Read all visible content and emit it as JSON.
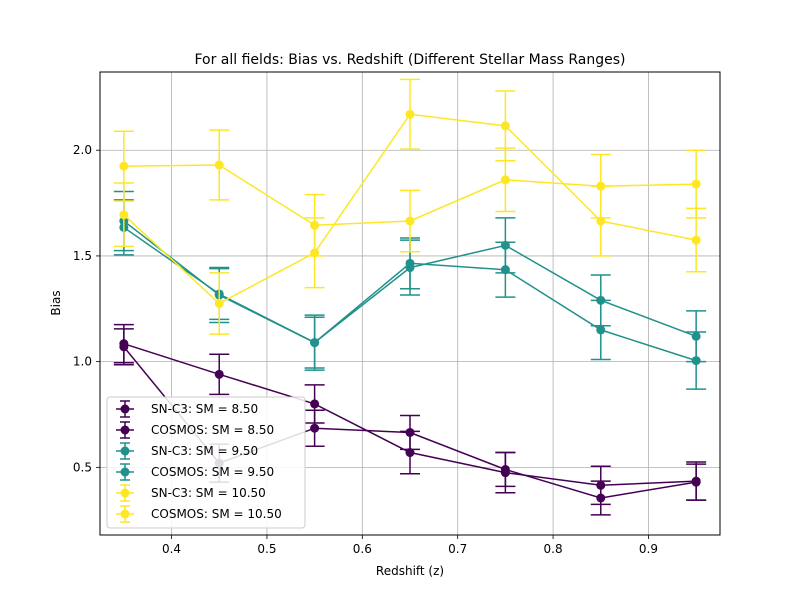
{
  "chart_data": {
    "type": "line",
    "title": "For all fields: Bias vs. Redshift (Different Stellar Mass Ranges)",
    "xlabel": "Redshift (z)",
    "ylabel": "Bias",
    "xlim": [
      0.325,
      0.975
    ],
    "ylim": [
      0.18,
      2.37
    ],
    "xticks": [
      "0.4",
      "0.5",
      "0.6",
      "0.7",
      "0.8",
      "0.9"
    ],
    "yticks": [
      "0.5",
      "1.0",
      "1.5",
      "2.0"
    ],
    "grid": true,
    "legend_position": "lower-left",
    "x": [
      0.35,
      0.45,
      0.55,
      0.65,
      0.75,
      0.85,
      0.95
    ],
    "series": [
      {
        "name": "SN-C3: SM = 8.50",
        "color": "#440154",
        "values": [
          1.085,
          0.94,
          0.8,
          0.57,
          0.475,
          0.415,
          0.435
        ],
        "errors": [
          0.09,
          0.095,
          0.09,
          0.1,
          0.095,
          0.09,
          0.09
        ]
      },
      {
        "name": "COSMOS: SM = 8.50",
        "color": "#440154",
        "values": [
          1.07,
          0.52,
          0.685,
          0.665,
          0.49,
          0.355,
          0.43
        ],
        "errors": [
          0.085,
          0.09,
          0.085,
          0.08,
          0.08,
          0.08,
          0.085
        ]
      },
      {
        "name": "SN-C3: SM = 9.50",
        "color": "#21918c",
        "values": [
          1.665,
          1.315,
          1.09,
          1.465,
          1.435,
          1.15,
          1.005
        ],
        "errors": [
          0.14,
          0.13,
          0.13,
          0.12,
          0.13,
          0.14,
          0.135
        ]
      },
      {
        "name": "COSMOS: SM = 9.50",
        "color": "#21918c",
        "values": [
          1.635,
          1.32,
          1.09,
          1.445,
          1.55,
          1.29,
          1.12
        ],
        "errors": [
          0.13,
          0.12,
          0.12,
          0.13,
          0.13,
          0.12,
          0.12
        ]
      },
      {
        "name": "SN-C3: SM = 10.50",
        "color": "#fde725",
        "values": [
          1.925,
          1.93,
          1.645,
          1.665,
          1.86,
          1.83,
          1.84
        ],
        "errors": [
          0.165,
          0.165,
          0.145,
          0.145,
          0.15,
          0.15,
          0.16
        ]
      },
      {
        "name": "COSMOS: SM = 10.50",
        "color": "#fde725",
        "values": [
          1.695,
          1.275,
          1.515,
          2.17,
          2.115,
          1.665,
          1.575
        ],
        "errors": [
          0.15,
          0.145,
          0.165,
          0.165,
          0.165,
          0.165,
          0.15
        ]
      }
    ]
  }
}
